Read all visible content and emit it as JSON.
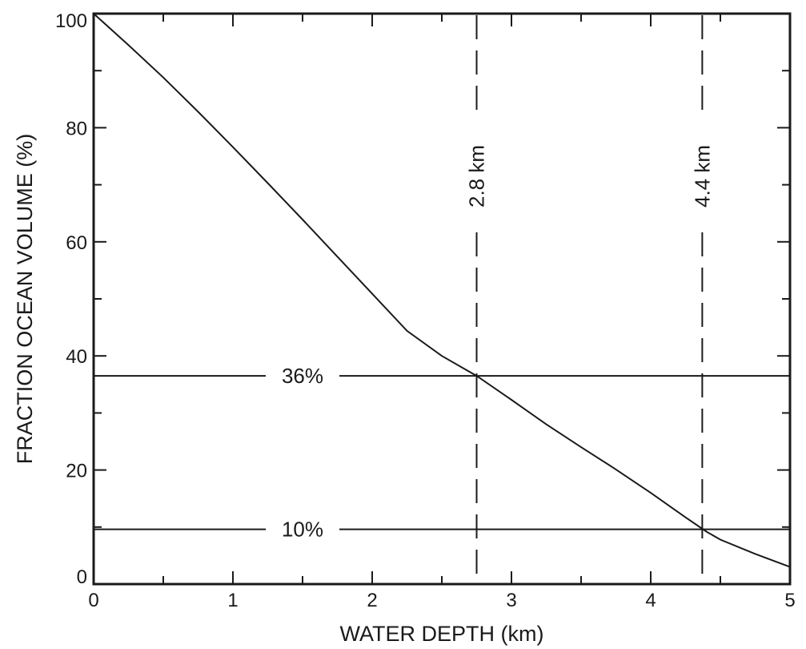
{
  "chart_data": {
    "type": "line",
    "title": "",
    "xlabel": "WATER DEPTH (km)",
    "ylabel": "FRACTION OCEAN VOLUME (%)",
    "xlim": [
      0,
      5
    ],
    "ylim": [
      0,
      100
    ],
    "x_ticks": [
      "0",
      "1",
      "2",
      "3",
      "4",
      "5"
    ],
    "y_ticks": [
      "0",
      "20",
      "40",
      "60",
      "80",
      "100"
    ],
    "grid": false,
    "series": [
      {
        "x": [
          0,
          0.25,
          0.5,
          0.75,
          1.0,
          1.25,
          1.5,
          1.75,
          2.0,
          2.25,
          2.5,
          2.75,
          3.0,
          3.25,
          3.5,
          3.75,
          4.0,
          4.25,
          4.4,
          4.5,
          4.75,
          5.0
        ],
        "y": [
          100,
          94.5,
          88.8,
          82.8,
          76.6,
          70.3,
          63.9,
          57.4,
          50.9,
          44.4,
          40.0,
          36.5,
          32.3,
          28.0,
          24.0,
          20.1,
          16.0,
          11.7,
          9.2,
          7.8,
          5.3,
          3.0
        ]
      }
    ],
    "annotations": {
      "hlines": [
        {
          "y": 36.5,
          "label": "36%"
        },
        {
          "y": 9.6,
          "label": "10%"
        }
      ],
      "vlines": [
        {
          "x": 2.75,
          "label": "2.8 km",
          "style": "dashed"
        },
        {
          "x": 4.37,
          "label": "4.4 km",
          "style": "dashed"
        }
      ]
    }
  }
}
